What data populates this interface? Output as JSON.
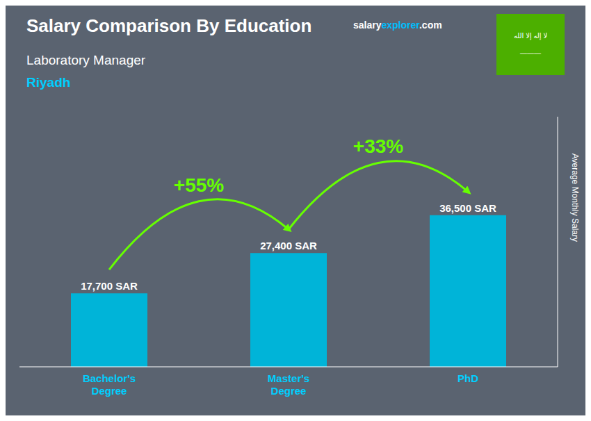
{
  "chart_data": {
    "type": "bar",
    "title": "Salary Comparison By Education",
    "subtitle": "Laboratory Manager",
    "y_label": "Average Monthly Salary",
    "categories": [
      "Bachelor's\nDegree",
      "Master's\nDegree",
      "PhD"
    ],
    "values": [
      17700,
      27400,
      36500
    ],
    "value_labels": [
      "17,700 SAR",
      "27,400 SAR",
      "36,500 SAR"
    ],
    "data_labels": true,
    "color": "#00b4d8",
    "ylim": [
      0,
      60225
    ],
    "tick_labels": "x",
    "grid": false,
    "annotations": [
      "+55%",
      "+33%",
      "Riyadh",
      "salary",
      "explorer",
      ".com",
      "———",
      "لا إله إلا الله"
    ]
  }
}
